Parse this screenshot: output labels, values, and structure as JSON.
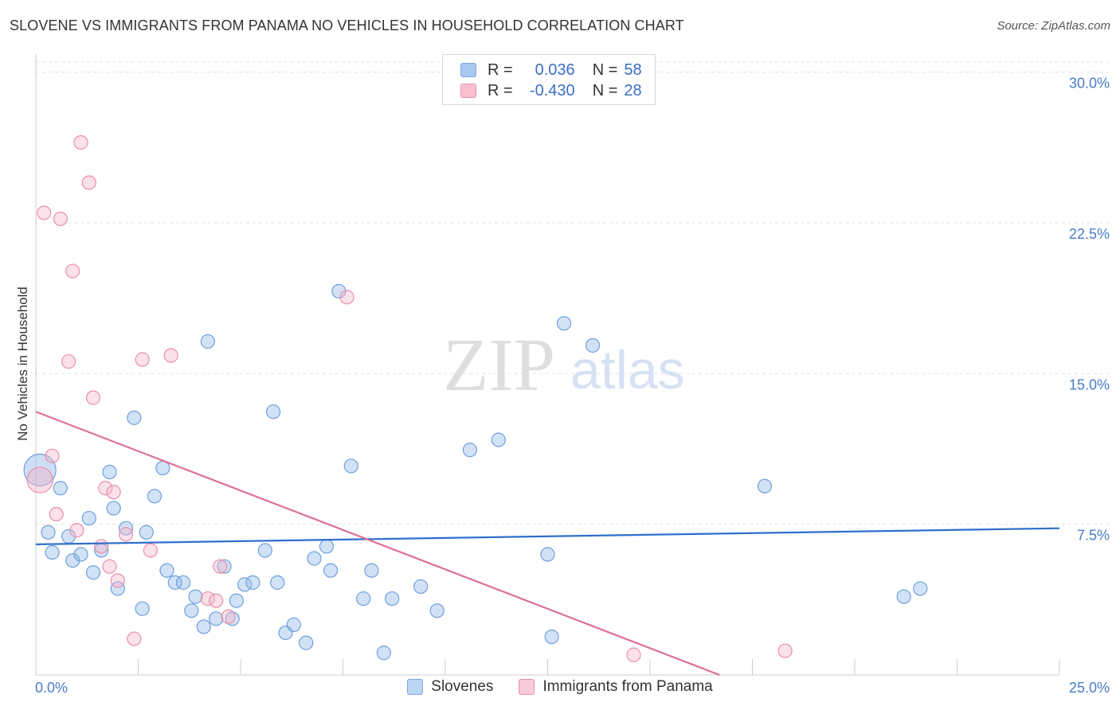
{
  "title": "SLOVENE VS IMMIGRANTS FROM PANAMA NO VEHICLES IN HOUSEHOLD CORRELATION CHART",
  "source": "Source: ZipAtlas.com",
  "watermark": {
    "zip": "ZIP",
    "atlas": "atlas"
  },
  "legend": {
    "rows": [
      {
        "r_label": "R =",
        "r_value": "0.036",
        "n_label": "N =",
        "n_value": "58",
        "color": "#a9c8f0",
        "border": "#7aa6dc"
      },
      {
        "r_label": "R =",
        "r_value": "-0.430",
        "n_label": "N =",
        "n_value": "28",
        "color": "#f7bfd0",
        "border": "#e98fab"
      }
    ]
  },
  "bottom_legend": [
    {
      "label": "Slovenes",
      "color": "#bcd5f5",
      "border": "#7aa6dc"
    },
    {
      "label": "Immigrants from Panama",
      "color": "#f9cbd9",
      "border": "#e98fab"
    }
  ],
  "chart_data": {
    "type": "scatter",
    "title": "SLOVENE VS IMMIGRANTS FROM PANAMA NO VEHICLES IN HOUSEHOLD CORRELATION CHART",
    "xlabel": "",
    "ylabel": "No Vehicles in Household",
    "xlim": [
      0,
      25
    ],
    "ylim": [
      0,
      30.5
    ],
    "y_ticks": [
      7.5,
      15.0,
      22.5,
      30.0
    ],
    "y_tick_labels": [
      "7.5%",
      "15.0%",
      "22.5%",
      "30.0%"
    ],
    "x_tick_labels": [
      "0.0%",
      "25.0%"
    ],
    "grid": true,
    "series": [
      {
        "name": "Slovenes",
        "color": "#8fb7e8",
        "edge": "#6e9fdc",
        "trend": {
          "x0": 0,
          "y0": 6.5,
          "x1": 25,
          "y1": 7.3,
          "color": "#2f6fcc"
        },
        "points": [
          [
            0.1,
            10.2
          ],
          [
            0.3,
            7.1
          ],
          [
            0.4,
            6.1
          ],
          [
            0.6,
            9.3
          ],
          [
            0.8,
            6.9
          ],
          [
            0.9,
            5.7
          ],
          [
            1.1,
            6.0
          ],
          [
            1.3,
            7.8
          ],
          [
            1.4,
            5.1
          ],
          [
            1.6,
            6.2
          ],
          [
            1.8,
            10.1
          ],
          [
            1.9,
            8.3
          ],
          [
            2.0,
            4.3
          ],
          [
            2.2,
            7.3
          ],
          [
            2.4,
            12.8
          ],
          [
            2.6,
            3.3
          ],
          [
            2.7,
            7.1
          ],
          [
            2.9,
            8.9
          ],
          [
            3.1,
            10.3
          ],
          [
            3.2,
            5.2
          ],
          [
            3.4,
            4.6
          ],
          [
            3.6,
            4.6
          ],
          [
            3.8,
            3.2
          ],
          [
            3.9,
            3.9
          ],
          [
            4.1,
            2.4
          ],
          [
            4.2,
            16.6
          ],
          [
            4.4,
            2.8
          ],
          [
            4.6,
            5.4
          ],
          [
            4.8,
            2.8
          ],
          [
            4.9,
            3.7
          ],
          [
            5.1,
            4.5
          ],
          [
            5.3,
            4.6
          ],
          [
            5.6,
            6.2
          ],
          [
            5.8,
            13.1
          ],
          [
            5.9,
            4.6
          ],
          [
            6.1,
            2.1
          ],
          [
            6.3,
            2.5
          ],
          [
            6.6,
            1.6
          ],
          [
            6.8,
            5.8
          ],
          [
            7.1,
            6.4
          ],
          [
            7.2,
            5.2
          ],
          [
            7.4,
            19.1
          ],
          [
            7.7,
            10.4
          ],
          [
            8.0,
            3.8
          ],
          [
            8.2,
            5.2
          ],
          [
            8.5,
            1.1
          ],
          [
            8.7,
            3.8
          ],
          [
            9.4,
            4.4
          ],
          [
            9.8,
            3.2
          ],
          [
            10.6,
            11.2
          ],
          [
            11.3,
            11.7
          ],
          [
            12.5,
            6.0
          ],
          [
            12.6,
            1.9
          ],
          [
            12.9,
            17.5
          ],
          [
            13.6,
            16.4
          ],
          [
            17.8,
            9.4
          ],
          [
            21.2,
            3.9
          ],
          [
            21.6,
            4.3
          ]
        ]
      },
      {
        "name": "Immigrants from Panama",
        "color": "#f5b4c9",
        "edge": "#e98fab",
        "trend": {
          "x0": 0,
          "y0": 13.1,
          "x1": 16.7,
          "y1": 0,
          "color": "#df6f98"
        },
        "points": [
          [
            0.1,
            9.7
          ],
          [
            0.2,
            23.0
          ],
          [
            0.4,
            10.9
          ],
          [
            0.5,
            8.0
          ],
          [
            0.6,
            22.7
          ],
          [
            0.8,
            15.6
          ],
          [
            0.9,
            20.1
          ],
          [
            1.0,
            7.2
          ],
          [
            1.1,
            26.5
          ],
          [
            1.3,
            24.5
          ],
          [
            1.4,
            13.8
          ],
          [
            1.6,
            6.4
          ],
          [
            1.7,
            9.3
          ],
          [
            1.8,
            5.4
          ],
          [
            1.9,
            9.1
          ],
          [
            2.0,
            4.7
          ],
          [
            2.2,
            7.0
          ],
          [
            2.4,
            1.8
          ],
          [
            2.6,
            15.7
          ],
          [
            2.8,
            6.2
          ],
          [
            3.3,
            15.9
          ],
          [
            4.2,
            3.8
          ],
          [
            4.4,
            3.7
          ],
          [
            4.5,
            5.4
          ],
          [
            4.7,
            2.9
          ],
          [
            7.6,
            18.8
          ],
          [
            14.6,
            1.0
          ],
          [
            18.3,
            1.2
          ]
        ]
      }
    ]
  }
}
